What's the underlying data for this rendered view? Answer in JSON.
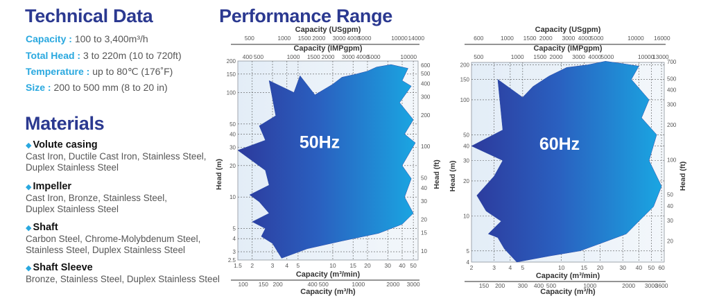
{
  "technical_data": {
    "title": "Technical Data",
    "specs": [
      {
        "label": "Capacity :",
        "value": "100 to 3,400m³/h"
      },
      {
        "label": "Total Head :",
        "value": "3 to 220m (10 to 720ft)"
      },
      {
        "label": "Temperature :",
        "value": "up to 80℃ (176˚F)"
      },
      {
        "label": "Size :",
        "value": "200 to 500 mm (8 to 20 in)"
      }
    ]
  },
  "materials": {
    "title": "Materials",
    "items": [
      {
        "name": "Volute casing",
        "line1": "Cast Iron, Ductile Cast Iron, Stainless Steel,",
        "line2": "Duplex Stainless Steel"
      },
      {
        "name": "Impeller",
        "line1": "Cast Iron, Bronze, Stainless Steel,",
        "line2": "Duplex Stainless Steel"
      },
      {
        "name": "Shaft",
        "line1": "Carbon Steel, Chrome-Molybdenum Steel,",
        "line2": "Stainless Steel, Duplex Stainless Steel"
      },
      {
        "name": "Shaft Sleeve",
        "line1": "Bronze, Stainless Steel, Duplex Stainless Steel",
        "line2": ""
      }
    ]
  },
  "performance": {
    "title": "Performance Range"
  },
  "colors": {
    "navy": "#2b3990",
    "cyan": "#29a8df",
    "fill_left": "#2d3a9c",
    "fill_right": "#1aa6e2",
    "plot_bg": "#e6f0f8"
  },
  "chart_data": [
    {
      "type": "area",
      "title": "50Hz",
      "x_unit_primary": "Capacity (m³/min)",
      "xlim": [
        1.5,
        55
      ],
      "ylim": [
        2.5,
        200
      ],
      "axes": {
        "usgpm": {
          "label": "Capacity (USgpm)",
          "factor": 264.17,
          "ticks": [
            500,
            1000,
            1500,
            2000,
            3000,
            4000,
            5000,
            10000,
            14000
          ]
        },
        "impgpm": {
          "label": "Capacity (IMPgpm)",
          "factor": 219.97,
          "ticks": [
            400,
            500,
            1000,
            1500,
            2000,
            3000,
            4000,
            5000,
            10000
          ]
        },
        "m3min": {
          "label": "Capacity (m³/min)",
          "factor": 1,
          "ticks": [
            1.5,
            2,
            3,
            4,
            5,
            10,
            15,
            20,
            30,
            40,
            50
          ]
        },
        "m3h": {
          "label": "Capacity (m³/h)",
          "factor": 60,
          "ticks": [
            100,
            150,
            200,
            400,
            500,
            1000,
            2000,
            3000
          ]
        },
        "head_m": {
          "label": "Head (m)",
          "factor": 1,
          "ticks": [
            2.5,
            3,
            4,
            5,
            10,
            20,
            30,
            40,
            50,
            100,
            150,
            200
          ]
        },
        "head_ft": {
          "label": "Head (ft)",
          "factor": 3.2808,
          "ticks": [
            10,
            15,
            20,
            30,
            40,
            50,
            100,
            200,
            300,
            400,
            500,
            600
          ]
        }
      },
      "envelope": [
        [
          3.6,
          2.6
        ],
        [
          3.0,
          3.6
        ],
        [
          2.4,
          4.2
        ],
        [
          2.6,
          5
        ],
        [
          2.0,
          5.8
        ],
        [
          2.8,
          7
        ],
        [
          2.3,
          9
        ],
        [
          1.9,
          10.5
        ],
        [
          2.8,
          13
        ],
        [
          2.6,
          18
        ],
        [
          1.5,
          28
        ],
        [
          2.6,
          35
        ],
        [
          2.3,
          48
        ],
        [
          3.2,
          60
        ],
        [
          2.8,
          130
        ],
        [
          4.6,
          100
        ],
        [
          5.2,
          145
        ],
        [
          7,
          95
        ],
        [
          10,
          120
        ],
        [
          12,
          140
        ],
        [
          16,
          150
        ],
        [
          20,
          160
        ],
        [
          24,
          175
        ],
        [
          32,
          185
        ],
        [
          45,
          170
        ],
        [
          40,
          130
        ],
        [
          48,
          115
        ],
        [
          38,
          80
        ],
        [
          50,
          55
        ],
        [
          42,
          40
        ],
        [
          52,
          33
        ],
        [
          40,
          20
        ],
        [
          48,
          15
        ],
        [
          42,
          10
        ],
        [
          50,
          7
        ],
        [
          40,
          5.5
        ],
        [
          25,
          4.5
        ],
        [
          12,
          3.8
        ],
        [
          6,
          3.2
        ]
      ]
    },
    {
      "type": "area",
      "title": "60Hz",
      "x_unit_primary": "Capacity (m³/min)",
      "xlim": [
        2,
        63
      ],
      "ylim": [
        4,
        210
      ],
      "axes": {
        "usgpm": {
          "label": "Capacity (USgpm)",
          "factor": 264.17,
          "ticks": [
            600,
            1000,
            1500,
            2000,
            3000,
            4000,
            5000,
            10000,
            16000
          ]
        },
        "impgpm": {
          "label": "Capacity (IMPgpm)",
          "factor": 219.97,
          "ticks": [
            500,
            1000,
            1500,
            2000,
            3000,
            4000,
            5000,
            10000,
            13000
          ]
        },
        "m3min": {
          "label": "Capacity (m³/min)",
          "factor": 1,
          "ticks": [
            2,
            3,
            4,
            5,
            10,
            15,
            20,
            30,
            40,
            50,
            60
          ]
        },
        "m3h": {
          "label": "Capacity (m³/h)",
          "factor": 60,
          "ticks": [
            150,
            200,
            300,
            400,
            500,
            1000,
            2000,
            3000,
            3600
          ]
        },
        "head_m": {
          "label": "Head (m)",
          "factor": 1,
          "ticks": [
            4,
            5,
            10,
            20,
            30,
            40,
            50,
            100,
            150,
            200
          ]
        },
        "head_ft": {
          "label": "Head (ft)",
          "factor": 3.2808,
          "ticks": [
            20,
            30,
            40,
            50,
            100,
            200,
            300,
            400,
            500,
            700
          ]
        }
      },
      "envelope": [
        [
          4.5,
          4
        ],
        [
          3.6,
          5.2
        ],
        [
          3.2,
          6.5
        ],
        [
          2.7,
          7
        ],
        [
          3.4,
          9
        ],
        [
          2.6,
          11
        ],
        [
          2.2,
          15
        ],
        [
          3,
          22
        ],
        [
          3.5,
          30
        ],
        [
          2,
          40
        ],
        [
          3.5,
          55
        ],
        [
          3.2,
          150
        ],
        [
          5,
          105
        ],
        [
          6,
          130
        ],
        [
          8,
          160
        ],
        [
          11,
          190
        ],
        [
          16,
          200
        ],
        [
          22,
          215
        ],
        [
          30,
          205
        ],
        [
          40,
          195
        ],
        [
          35,
          150
        ],
        [
          48,
          100
        ],
        [
          42,
          70
        ],
        [
          55,
          50
        ],
        [
          48,
          30
        ],
        [
          60,
          18
        ],
        [
          52,
          12
        ],
        [
          40,
          9
        ],
        [
          32,
          7
        ],
        [
          22,
          6
        ],
        [
          14,
          5
        ],
        [
          8,
          4.5
        ]
      ]
    }
  ]
}
